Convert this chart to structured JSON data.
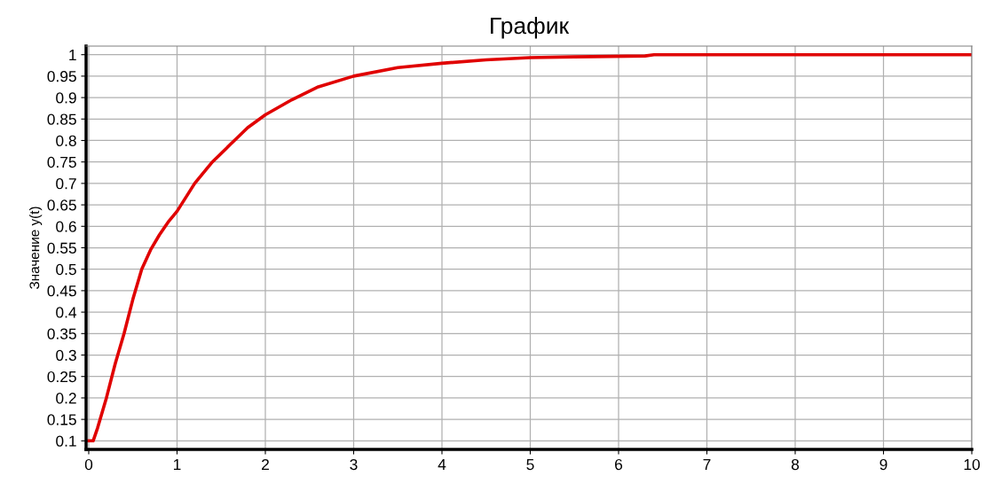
{
  "chart_data": {
    "type": "line",
    "title": "График",
    "ylabel": "Значение y(t)",
    "x": [
      0,
      0.05,
      0.1,
      0.2,
      0.3,
      0.4,
      0.5,
      0.6,
      0.7,
      0.8,
      0.9,
      1.0,
      1.2,
      1.4,
      1.6,
      1.8,
      2.0,
      2.3,
      2.6,
      3.0,
      3.5,
      4.0,
      4.5,
      5.0,
      5.5,
      6.3,
      6.4,
      10
    ],
    "series": [
      {
        "color": "#e00000",
        "values": [
          0.1,
          0.1,
          0.13,
          0.2,
          0.28,
          0.35,
          0.43,
          0.5,
          0.545,
          0.58,
          0.61,
          0.635,
          0.7,
          0.75,
          0.79,
          0.83,
          0.86,
          0.895,
          0.925,
          0.95,
          0.97,
          0.98,
          0.988,
          0.993,
          0.995,
          0.997,
          1.0,
          1.0
        ]
      }
    ],
    "xlim": [
      -0.03,
      10
    ],
    "ylim": [
      0.08,
      1.02
    ],
    "xticks": [
      0,
      1,
      2,
      3,
      4,
      5,
      6,
      7,
      8,
      9,
      10
    ],
    "yticks": [
      0.1,
      0.15,
      0.2,
      0.25,
      0.3,
      0.35,
      0.4,
      0.45,
      0.5,
      0.55,
      0.6,
      0.65,
      0.7,
      0.75,
      0.8,
      0.85,
      0.9,
      0.95,
      1
    ],
    "grid": true,
    "marker": "none",
    "line_style": "solid"
  }
}
